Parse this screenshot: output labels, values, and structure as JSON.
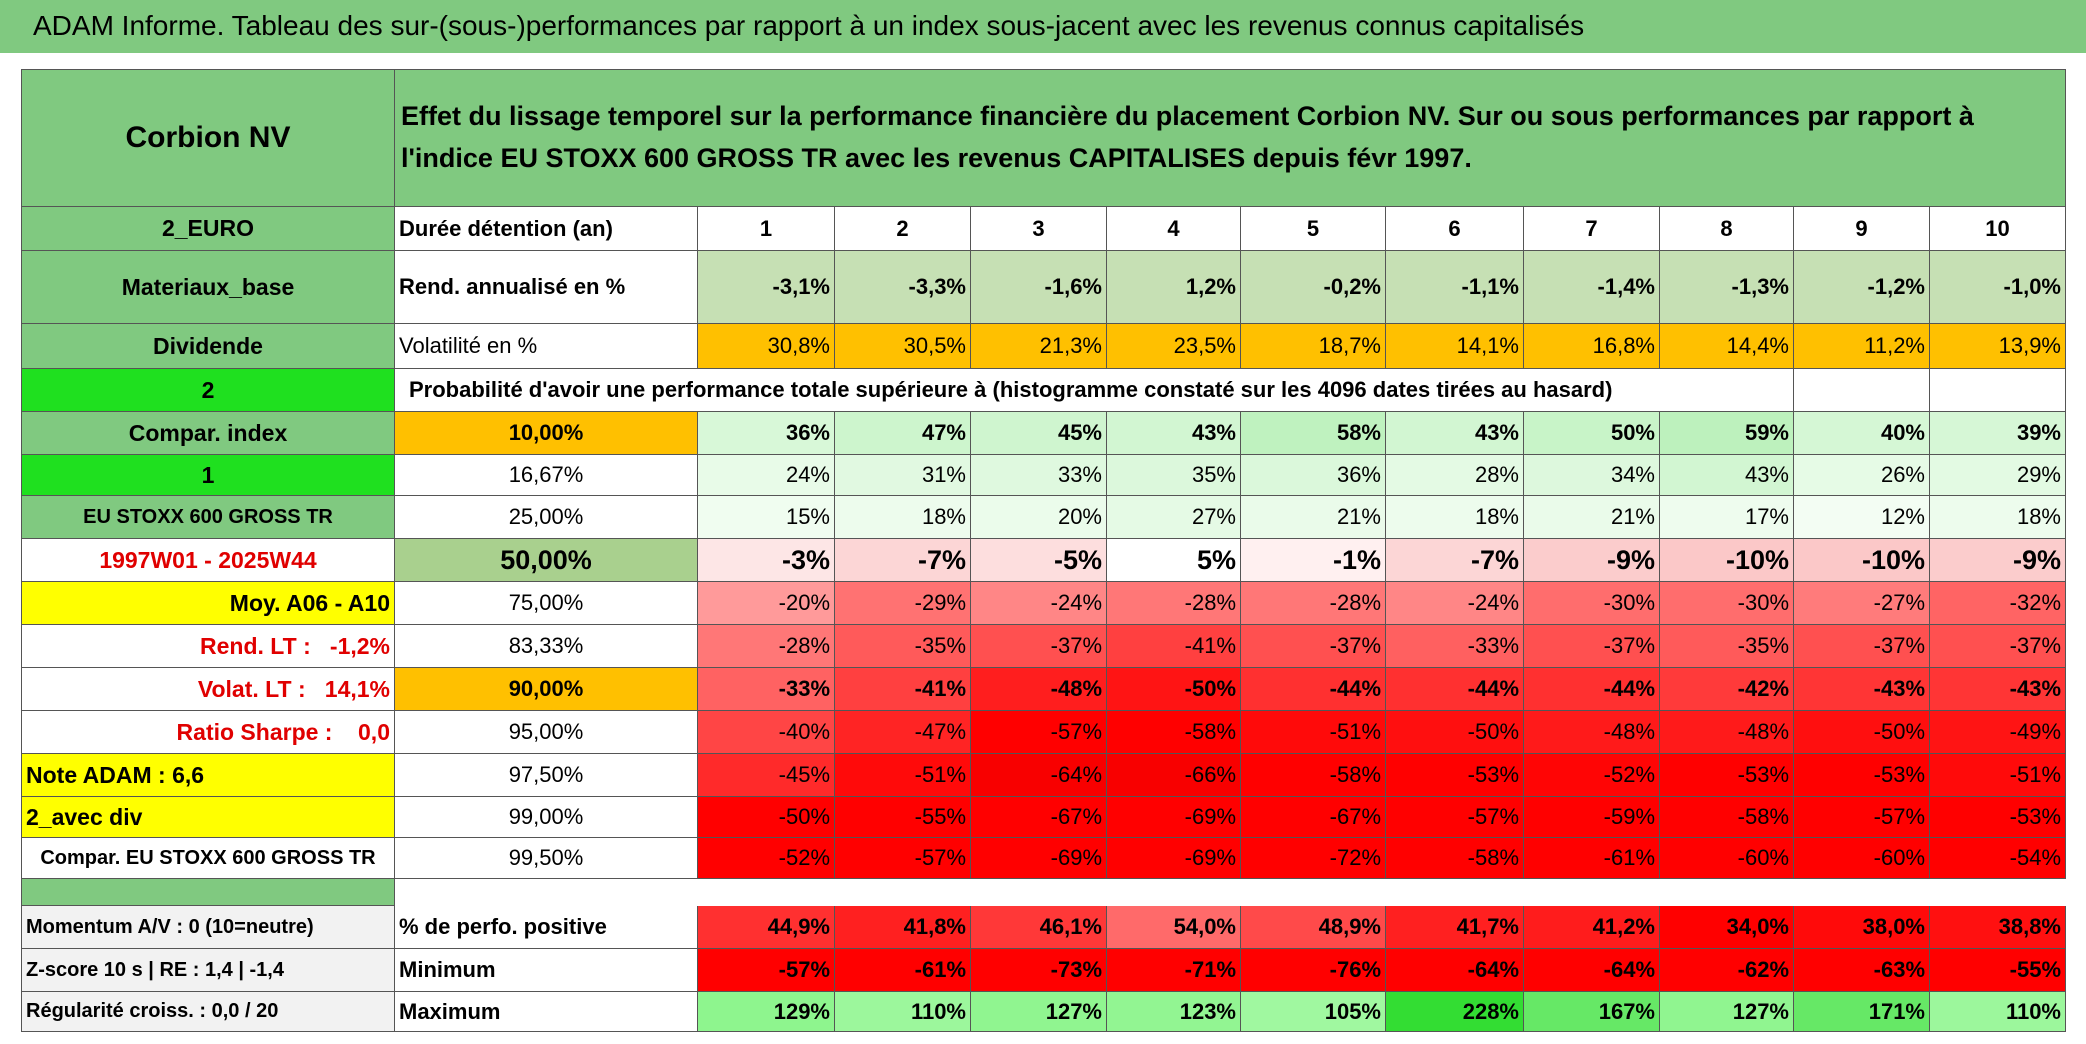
{
  "title": "ADAM Informe. Tableau des sur-(sous-)performances par rapport à un index sous-jacent avec les revenus connus capitalisés",
  "header": {
    "name": "Corbion NV",
    "description": "Effet du lissage temporel sur la performance financière du placement Corbion NV. Sur ou sous performances par rapport à l'indice EU STOXX 600 GROSS TR avec les revenus CAPITALISES depuis févr 1997."
  },
  "rows": [
    {
      "left": "2_EURO",
      "left_color": "#80c980",
      "label": "Durée détention (an)",
      "cells": [
        "1",
        "2",
        "3",
        "4",
        "5",
        "6",
        "7",
        "8",
        "9",
        "10"
      ],
      "color": "#ffffff"
    },
    {
      "left": "Materiaux_base",
      "left_color": "#80c980",
      "label": "Rend. annualisé en %",
      "cells": [
        "-3,1%",
        "-3,3%",
        "-1,6%",
        "1,2%",
        "-0,2%",
        "-1,1%",
        "-1,4%",
        "-1,3%",
        "-1,2%",
        "-1,0%"
      ],
      "color": "#c6e0b4"
    },
    {
      "left": "Dividende",
      "left_color": "#80c980",
      "label": "Volatilité en %",
      "cells": [
        "30,8%",
        "30,5%",
        "21,3%",
        "23,5%",
        "18,7%",
        "14,1%",
        "16,8%",
        "14,4%",
        "11,2%",
        "13,9%"
      ],
      "color": "#ffc000"
    },
    {
      "left": "2",
      "left_color": "#1fe01f",
      "text": "Probabilité d'avoir une performance totale supérieure à (histogramme constaté sur les 4096 dates tirées au hasard)"
    },
    {
      "left": "Compar. index",
      "left_color": "#80c980",
      "label": "10,00%",
      "label_color": "#ffc000",
      "cells": [
        "36%",
        "47%",
        "45%",
        "43%",
        "58%",
        "43%",
        "50%",
        "59%",
        "40%",
        "39%"
      ],
      "colors": [
        "#d8f8d8",
        "#cdf5cd",
        "#cff5cf",
        "#d2f6d2",
        "#bff2bf",
        "#d2f6d2",
        "#c8f4c8",
        "#bdf1bd",
        "#d5f7d5",
        "#d6f7d6"
      ]
    },
    {
      "left": "1",
      "left_color": "#1fe01f",
      "label": "16,67%",
      "cells": [
        "24%",
        "31%",
        "33%",
        "35%",
        "36%",
        "28%",
        "34%",
        "43%",
        "26%",
        "29%"
      ],
      "colors": [
        "#e8fbe8",
        "#e1f9e1",
        "#dff9df",
        "#dcf8dc",
        "#dbf8db",
        "#e4fae4",
        "#ddf8dd",
        "#d2f6d2",
        "#e6fbe6",
        "#e3fae3"
      ]
    },
    {
      "left": "EU STOXX 600 GROSS TR",
      "left_color": "#80c980",
      "label": "25,00%",
      "cells": [
        "15%",
        "18%",
        "20%",
        "27%",
        "21%",
        "18%",
        "21%",
        "17%",
        "12%",
        "18%"
      ],
      "colors": [
        "#f0fdf0",
        "#edfced",
        "#ebfceb",
        "#e5fae5",
        "#eafbea",
        "#edfced",
        "#eafbea",
        "#eefcee",
        "#f3fdf3",
        "#edfced"
      ]
    },
    {
      "left": "1997W01 - 2025W44",
      "left_color": "#ffffff",
      "left_text_color": "#e00000",
      "label": "50,00%",
      "label_color": "#a9d08e",
      "cells": [
        "-3%",
        "-7%",
        "-5%",
        "5%",
        "-1%",
        "-7%",
        "-9%",
        "-10%",
        "-10%",
        "-9%"
      ],
      "colors": [
        "#fde6e6",
        "#fcd6d6",
        "#fddede",
        "#ffffff",
        "#fff0f0",
        "#fcd6d6",
        "#fbcccc",
        "#fbc8c8",
        "#fbc8c8",
        "#fbcccc"
      ]
    },
    {
      "left": "Moy. A06 - A10",
      "left_color": "#ffff00",
      "label": "75,00%",
      "cells": [
        "-20%",
        "-29%",
        "-24%",
        "-28%",
        "-28%",
        "-24%",
        "-30%",
        "-30%",
        "-27%",
        "-32%"
      ],
      "colors": [
        "#ff9a9a",
        "#ff7272",
        "#ff8686",
        "#ff7777",
        "#ff7777",
        "#ff8686",
        "#ff6d6d",
        "#ff6d6d",
        "#ff7b7b",
        "#ff6464"
      ]
    },
    {
      "left": "Rend. LT :   -1,2%",
      "left_color": "#ffffff",
      "left_text_color": "#e00000",
      "label": "83,33%",
      "cells": [
        "-28%",
        "-35%",
        "-37%",
        "-41%",
        "-37%",
        "-33%",
        "-37%",
        "-35%",
        "-37%",
        "-37%"
      ],
      "colors": [
        "#ff7777",
        "#ff5a5a",
        "#ff5050",
        "#ff4040",
        "#ff5050",
        "#ff6060",
        "#ff5050",
        "#ff5a5a",
        "#ff5050",
        "#ff5050"
      ]
    },
    {
      "left": "Volat. LT :   14,1%",
      "left_color": "#ffffff",
      "left_text_color": "#e00000",
      "label": "90,00%",
      "label_color": "#ffc000",
      "cells": [
        "-33%",
        "-41%",
        "-48%",
        "-50%",
        "-44%",
        "-44%",
        "-44%",
        "-42%",
        "-43%",
        "-43%"
      ],
      "colors": [
        "#ff6262",
        "#ff4040",
        "#ff1e1e",
        "#ff1414",
        "#ff3030",
        "#ff3030",
        "#ff3030",
        "#ff3a3a",
        "#ff3535",
        "#ff3535"
      ]
    },
    {
      "left": "Ratio Sharpe :    0,0",
      "left_color": "#ffffff",
      "left_text_color": "#e00000",
      "label": "95,00%",
      "cells": [
        "-40%",
        "-47%",
        "-57%",
        "-58%",
        "-51%",
        "-50%",
        "-48%",
        "-48%",
        "-50%",
        "-49%"
      ],
      "colors": [
        "#ff4545",
        "#ff2424",
        "#ff0000",
        "#ff0000",
        "#ff0a0a",
        "#ff0f0f",
        "#ff1a1a",
        "#ff1a1a",
        "#ff0f0f",
        "#ff1414"
      ]
    },
    {
      "left": "Note ADAM : 6,6",
      "left_color": "#ffff00",
      "label": "97,50%",
      "cells": [
        "-45%",
        "-51%",
        "-64%",
        "-66%",
        "-58%",
        "-53%",
        "-52%",
        "-53%",
        "-53%",
        "-51%"
      ],
      "colors": [
        "#ff2a2a",
        "#ff0a0a",
        "#f80000",
        "#f80000",
        "#ff0000",
        "#ff0000",
        "#ff0505",
        "#ff0000",
        "#ff0000",
        "#ff0a0a"
      ]
    },
    {
      "left": "2_avec div",
      "left_color": "#ffff00",
      "label": "99,00%",
      "cells": [
        "-50%",
        "-55%",
        "-67%",
        "-69%",
        "-67%",
        "-57%",
        "-59%",
        "-58%",
        "-57%",
        "-53%"
      ],
      "color": "#ff0000"
    },
    {
      "left": "Compar. EU STOXX 600 GROSS TR",
      "left_color": "#ffffff",
      "label": "99,50%",
      "cells": [
        "-52%",
        "-57%",
        "-69%",
        "-69%",
        "-72%",
        "-58%",
        "-61%",
        "-60%",
        "-60%",
        "-54%"
      ],
      "color": "#ff0000"
    },
    {
      "left_color": "#80c980"
    },
    {
      "left": "Momentum A/V : 0 (10=neutre)",
      "left_color": "#f2f2f2",
      "label": "% de perfo. positive",
      "cells": [
        "44,9%",
        "41,8%",
        "46,1%",
        "54,0%",
        "48,9%",
        "41,7%",
        "41,2%",
        "34,0%",
        "38,0%",
        "38,8%"
      ],
      "colors": [
        "#ff3030",
        "#ff2020",
        "#ff3838",
        "#ff6a6a",
        "#ff4a4a",
        "#ff2020",
        "#ff1c1c",
        "#ff0000",
        "#ff0a0a",
        "#ff1010"
      ]
    },
    {
      "left": "Z-score 10 s | RE : 1,4 | -1,4",
      "left_color": "#f2f2f2",
      "label": "Minimum",
      "cells": [
        "-57%",
        "-61%",
        "-73%",
        "-71%",
        "-76%",
        "-64%",
        "-64%",
        "-62%",
        "-63%",
        "-55%"
      ],
      "color": "#ff0000"
    },
    {
      "left": "Régularité croiss. : 0,0 / 20",
      "left_color": "#f2f2f2",
      "label": "Maximum",
      "cells": [
        "129%",
        "110%",
        "127%",
        "123%",
        "105%",
        "228%",
        "167%",
        "127%",
        "171%",
        "110%"
      ],
      "colors": [
        "#8ef58e",
        "#9cf79c",
        "#90f590",
        "#92f592",
        "#a0f8a0",
        "#33dd33",
        "#66e866",
        "#90f590",
        "#66e866",
        "#9cf79c"
      ]
    }
  ]
}
